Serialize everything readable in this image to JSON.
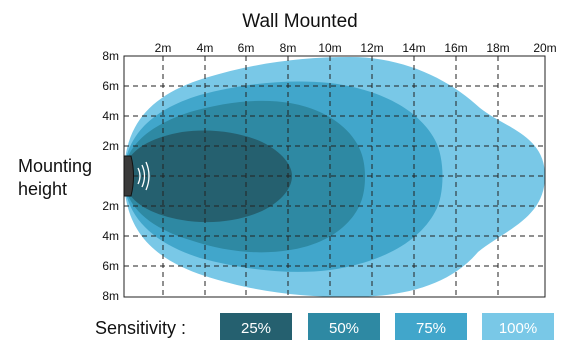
{
  "title": "Wall Mounted",
  "x_ticks": [
    "2m",
    "4m",
    "6m",
    "8m",
    "10m",
    "12m",
    "14m",
    "16m",
    "18m",
    "20m"
  ],
  "y_ticks": [
    "8m",
    "6m",
    "4m",
    "2m",
    "",
    "2m",
    "4m",
    "6m",
    "8m"
  ],
  "side_label": [
    "Mounting",
    "height"
  ],
  "legend": {
    "label": "Sensitivity :",
    "items": [
      {
        "text": "25%",
        "color": "#25606f"
      },
      {
        "text": "50%",
        "color": "#2e89a3"
      },
      {
        "text": "75%",
        "color": "#41a6cb"
      },
      {
        "text": "100%",
        "color": "#79c8e7"
      }
    ]
  },
  "zones": [
    {
      "name": "100%",
      "color": "#79c8e7"
    },
    {
      "name": "75%",
      "color": "#41a6cb"
    },
    {
      "name": "50%",
      "color": "#2e89a3"
    },
    {
      "name": "25%",
      "color": "#25606f"
    }
  ]
}
